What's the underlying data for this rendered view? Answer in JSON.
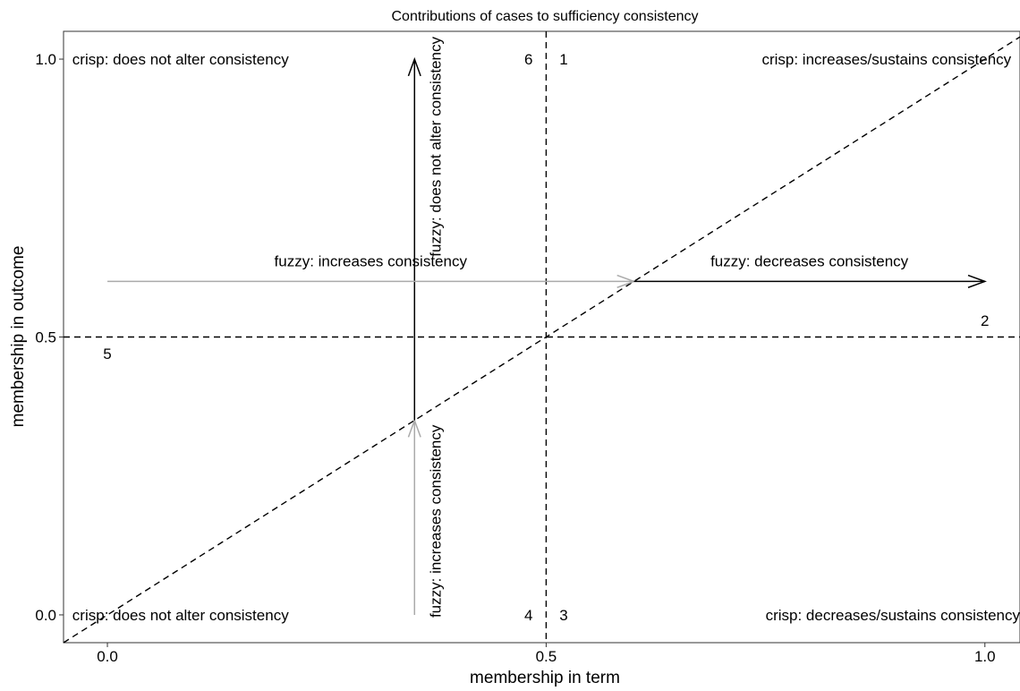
{
  "chart_data": {
    "type": "scatter",
    "title": "Contributions of cases to sufficiency consistency",
    "xlabel": "membership in term",
    "ylabel": "membership in outcome",
    "xlim": [
      -0.05,
      1.04
    ],
    "ylim": [
      -0.05,
      1.05
    ],
    "x_ticks": [
      {
        "value": 0.0,
        "label": "0.0"
      },
      {
        "value": 0.5,
        "label": "0.5"
      },
      {
        "value": 1.0,
        "label": "1.0"
      }
    ],
    "y_ticks": [
      {
        "value": 0.0,
        "label": "0.0"
      },
      {
        "value": 0.5,
        "label": "0.5"
      },
      {
        "value": 1.0,
        "label": "1.0"
      }
    ],
    "grid": false,
    "reference_lines": [
      {
        "kind": "vertical",
        "x": 0.5,
        "style": "dashed"
      },
      {
        "kind": "horizontal",
        "y": 0.5,
        "style": "dashed"
      },
      {
        "kind": "diagonal",
        "from": [
          -0.05,
          -0.05
        ],
        "to": [
          1.04,
          1.04
        ],
        "style": "dashed"
      }
    ],
    "arrows": [
      {
        "from": [
          0.35,
          0.0
        ],
        "to": [
          0.35,
          0.35
        ],
        "color": "#aaaaaa",
        "label": "fuzzy: increases consistency",
        "orientation": "vertical"
      },
      {
        "from": [
          0.35,
          0.35
        ],
        "to": [
          0.35,
          1.0
        ],
        "color": "#000000",
        "label": "fuzzy: does not alter consistency",
        "orientation": "vertical"
      },
      {
        "from": [
          0.0,
          0.6
        ],
        "to": [
          0.6,
          0.6
        ],
        "color": "#aaaaaa",
        "label": "fuzzy: increases consistency",
        "orientation": "horizontal"
      },
      {
        "from": [
          0.6,
          0.6
        ],
        "to": [
          1.0,
          0.6
        ],
        "color": "#000000",
        "label": "fuzzy: decreases consistency",
        "orientation": "horizontal"
      }
    ],
    "case_numbers": [
      {
        "label": "1",
        "x": 0.52,
        "y": 1.0
      },
      {
        "label": "2",
        "x": 1.0,
        "y": 0.53
      },
      {
        "label": "3",
        "x": 0.52,
        "y": 0.0
      },
      {
        "label": "4",
        "x": 0.48,
        "y": 0.0
      },
      {
        "label": "5",
        "x": 0.0,
        "y": 0.47
      },
      {
        "label": "6",
        "x": 0.48,
        "y": 1.0
      }
    ],
    "quadrant_labels": [
      {
        "text": "crisp: does not alter consistency",
        "x": -0.04,
        "y": 1.0,
        "anchor": "start"
      },
      {
        "text": "crisp: increases/sustains consistency",
        "x": 1.03,
        "y": 1.0,
        "anchor": "end"
      },
      {
        "text": "crisp: does not alter consistency",
        "x": -0.04,
        "y": 0.0,
        "anchor": "start"
      },
      {
        "text": "crisp: decreases/sustains consistency",
        "x": 1.04,
        "y": 0.0,
        "anchor": "end"
      }
    ]
  }
}
